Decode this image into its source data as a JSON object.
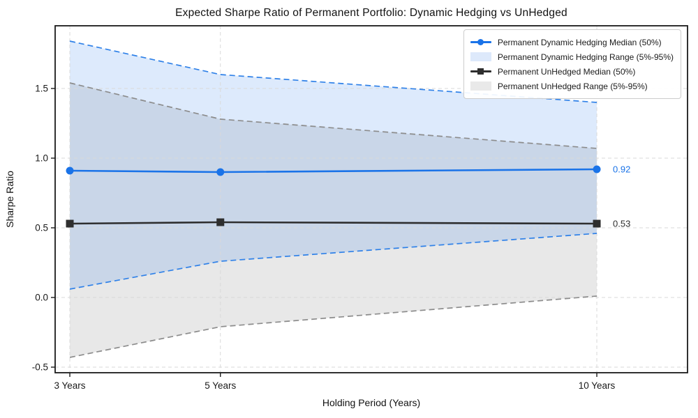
{
  "title": "Expected Sharpe Ratio of Permanent Portfolio: Dynamic Hedging vs UnHedged",
  "chart_data": {
    "type": "line",
    "x": [
      3,
      5,
      10
    ],
    "x_tick_labels": [
      "3 Years",
      "5 Years",
      "10 Years"
    ],
    "xlabel": "Holding Period (Years)",
    "ylabel": "Sharpe Ratio",
    "yticks": [
      -0.5,
      0.0,
      0.5,
      1.0,
      1.5
    ],
    "ytick_labels": [
      "-0.5",
      "0.0",
      "0.5",
      "1.0",
      "1.5"
    ],
    "xlim": [
      2.805,
      11.205
    ],
    "ylim": [
      -0.54,
      1.95
    ],
    "grid": true,
    "legend_position": "upper right",
    "series": [
      {
        "name": "Permanent Dynamic Hedging Median (50%)",
        "kind": "line",
        "marker": "circle",
        "color": "#1a73e8",
        "values": [
          0.91,
          0.9,
          0.92
        ]
      },
      {
        "name": "Permanent Dynamic Hedging Range (5%-95%)",
        "kind": "band",
        "color": "#1a73e8",
        "fill_opacity": 0.15,
        "edge_color": "#2f81e8",
        "upper": [
          1.84,
          1.6,
          1.4
        ],
        "lower": [
          0.06,
          0.26,
          0.46
        ]
      },
      {
        "name": "Permanent UnHedged Median (50%)",
        "kind": "line",
        "marker": "square",
        "color": "#2e2e2e",
        "values": [
          0.53,
          0.54,
          0.53
        ]
      },
      {
        "name": "Permanent UnHedged Range (5%-95%)",
        "kind": "band",
        "color": "#808080",
        "fill_opacity": 0.18,
        "edge_color": "#8c8c8c",
        "upper": [
          1.54,
          1.28,
          1.07
        ],
        "lower": [
          -0.43,
          -0.21,
          0.01
        ]
      }
    ],
    "annotations": [
      {
        "text": "0.92",
        "x": 10,
        "y": 0.92,
        "color": "#1a73e8"
      },
      {
        "text": "0.53",
        "x": 10,
        "y": 0.53,
        "color": "#2e2e2e"
      }
    ]
  },
  "legend_swatch_colors": {
    "blue_band": "#dde9fb",
    "gray_band": "#e9e9e9"
  }
}
